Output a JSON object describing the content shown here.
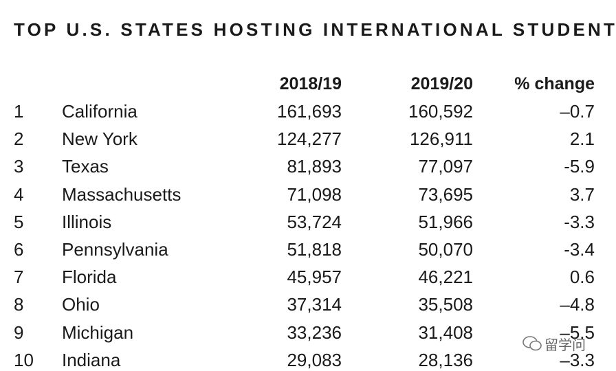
{
  "title": "TOP U.S. STATES HOSTING INTERNATIONAL STUDENTS",
  "table": {
    "header": [
      "2018/19",
      "2019/20",
      "% change"
    ],
    "rows": [
      [
        "1",
        "California",
        "161,693",
        "160,592",
        "–0.7"
      ],
      [
        "2",
        "New York",
        "124,277",
        "126,911",
        "2.1"
      ],
      [
        "3",
        "Texas",
        "81,893",
        "77,097",
        "-5.9"
      ],
      [
        "4",
        "Massachusetts",
        "71,098",
        "73,695",
        "3.7"
      ],
      [
        "5",
        "Illinois",
        "53,724",
        "51,966",
        "-3.3"
      ],
      [
        "6",
        "Pennsylvania",
        "51,818",
        "50,070",
        "-3.4"
      ],
      [
        "7",
        "Florida",
        "45,957",
        "46,221",
        "0.6"
      ],
      [
        "8",
        "Ohio",
        "37,314",
        "35,508",
        "–4.8"
      ],
      [
        "9",
        "Michigan",
        "33,236",
        "31,408",
        "–5.5"
      ],
      [
        "10",
        "Indiana",
        "29,083",
        "28,136",
        "–3.3"
      ]
    ]
  },
  "watermark": "留学问"
}
